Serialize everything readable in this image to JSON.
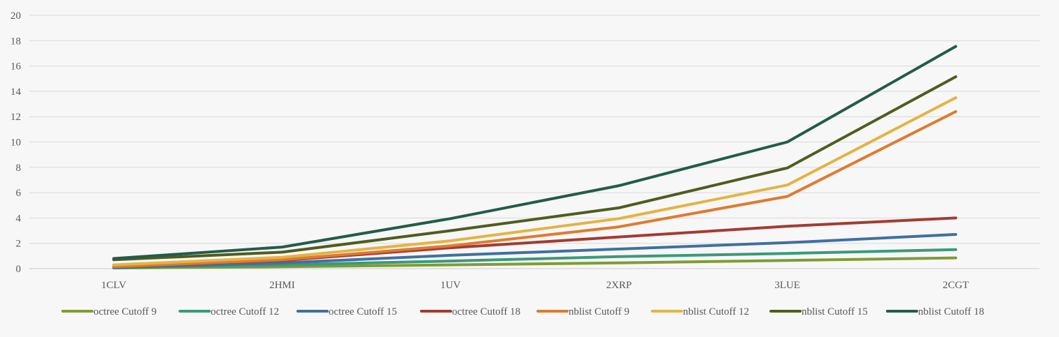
{
  "chart_data": {
    "type": "line",
    "title": "",
    "xlabel": "",
    "ylabel": "",
    "categories": [
      "1CLV",
      "2HMI",
      "1UV",
      "2XRP",
      "3LUE",
      "2CGT"
    ],
    "ylim": [
      0,
      20
    ],
    "yticks": [
      0,
      2,
      4,
      6,
      8,
      10,
      12,
      14,
      16,
      18,
      20
    ],
    "grid": true,
    "legend_position": "bottom",
    "series": [
      {
        "name": "octree Cutoff 9",
        "color": "#7f9c34",
        "values": [
          0.05,
          0.15,
          0.3,
          0.45,
          0.65,
          0.85
        ]
      },
      {
        "name": "octree Cutoff 12",
        "color": "#3a9a7a",
        "values": [
          0.08,
          0.3,
          0.6,
          0.95,
          1.2,
          1.5
        ]
      },
      {
        "name": "octree Cutoff 15",
        "color": "#40709e",
        "values": [
          0.1,
          0.45,
          1.05,
          1.55,
          2.05,
          2.7
        ]
      },
      {
        "name": "octree Cutoff 18",
        "color": "#a33b32",
        "values": [
          0.15,
          0.65,
          1.65,
          2.5,
          3.35,
          4.0
        ]
      },
      {
        "name": "nblist Cutoff 9",
        "color": "#e07a30",
        "values": [
          0.15,
          0.7,
          1.8,
          3.3,
          5.7,
          12.4
        ]
      },
      {
        "name": "nblist Cutoff 12",
        "color": "#e3b443",
        "values": [
          0.3,
          0.9,
          2.2,
          3.95,
          6.6,
          13.5
        ]
      },
      {
        "name": "nblist Cutoff 15",
        "color": "#4e5d1f",
        "values": [
          0.7,
          1.3,
          3.0,
          4.8,
          7.95,
          15.15
        ]
      },
      {
        "name": "nblist Cutoff 18",
        "color": "#235c49",
        "values": [
          0.8,
          1.7,
          3.95,
          6.55,
          10.0,
          17.55
        ]
      }
    ]
  }
}
